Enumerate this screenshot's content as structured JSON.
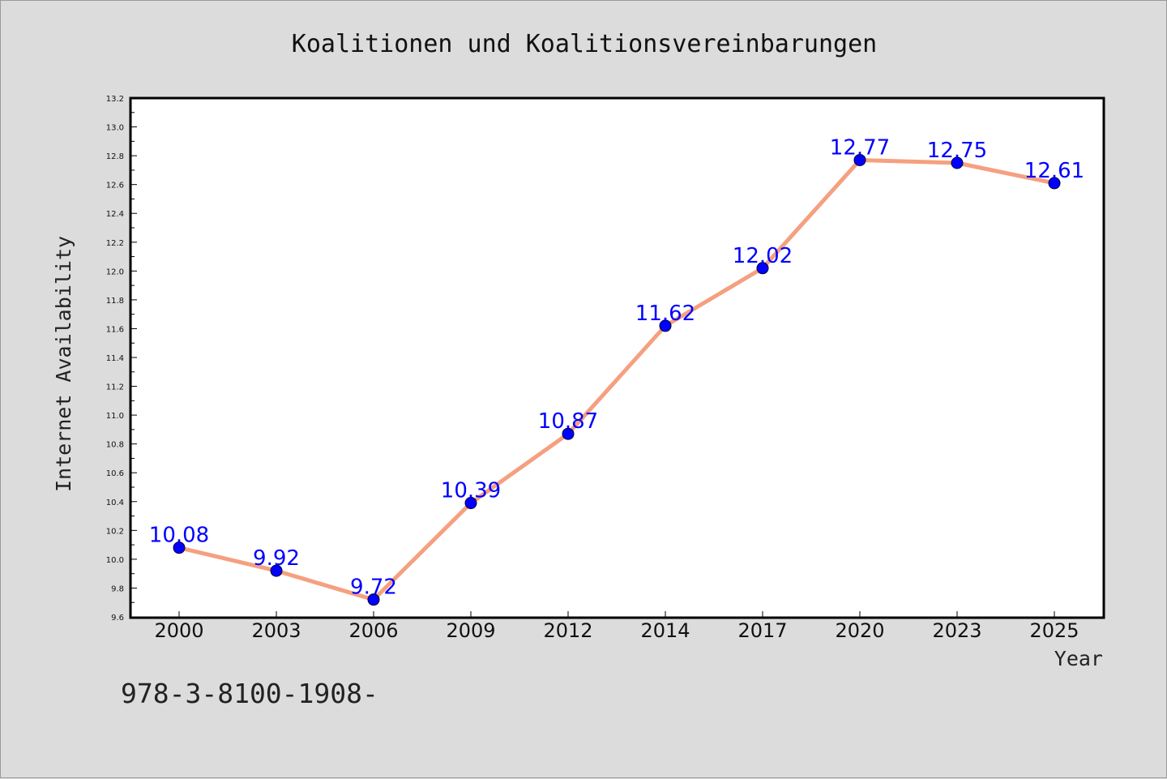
{
  "chart_data": {
    "type": "line",
    "title": "Koalitionen und Koalitionsvereinbarungen",
    "xlabel": "Year",
    "ylabel": "Internet Availability",
    "categories": [
      "2000",
      "2003",
      "2006",
      "2009",
      "2012",
      "2014",
      "2017",
      "2020",
      "2023",
      "2025"
    ],
    "series": [
      {
        "values": [
          10.08,
          9.92,
          9.72,
          10.39,
          10.87,
          11.62,
          12.02,
          12.77,
          12.75,
          12.61
        ],
        "line_color": "#f5a07f",
        "marker_color": "#0000ff"
      }
    ],
    "data_labels": [
      "10.08",
      "9.92",
      "9.72",
      "10.39",
      "10.87",
      "11.62",
      "12.02",
      "12.77",
      "12.75",
      "12.61"
    ],
    "y_ticks": [
      "9.6",
      "9.8",
      "10.0",
      "10.2",
      "10.4",
      "10.6",
      "10.8",
      "11.0",
      "11.2",
      "11.4",
      "11.6",
      "11.8",
      "12.0",
      "12.2",
      "12.4",
      "12.6",
      "12.8",
      "13.0",
      "13.2"
    ],
    "ylim": [
      9.6,
      13.2
    ],
    "grid": false,
    "legend": false
  },
  "footer_text": "978-3-8100-1908-",
  "colors": {
    "background": "#dcdcdc",
    "plot_background": "#ffffff",
    "axis": "#000000",
    "line": "#f5a07f",
    "marker": "#0000ff",
    "data_label": "#0000ff"
  }
}
